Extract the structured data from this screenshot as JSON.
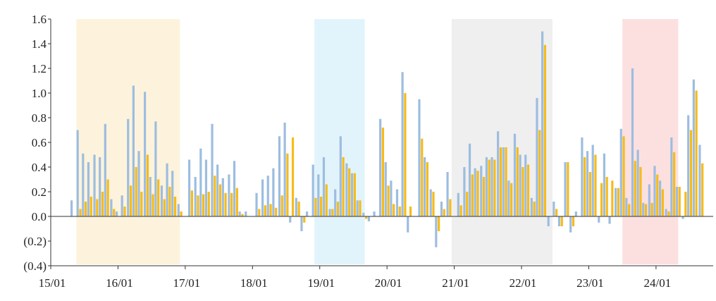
{
  "chart_data": {
    "type": "bar",
    "title": "",
    "xlabel": "",
    "ylabel": "",
    "ylim": [
      -0.4,
      1.6
    ],
    "y_ticks": [
      {
        "value": 1.6,
        "label": "1.6"
      },
      {
        "value": 1.4,
        "label": "1.4"
      },
      {
        "value": 1.2,
        "label": "1.2"
      },
      {
        "value": 1.0,
        "label": "1.0"
      },
      {
        "value": 0.8,
        "label": "0.8"
      },
      {
        "value": 0.6,
        "label": "0.6"
      },
      {
        "value": 0.4,
        "label": "0.4"
      },
      {
        "value": 0.2,
        "label": "0.2"
      },
      {
        "value": 0.0,
        "label": "0.0"
      },
      {
        "value": -0.2,
        "label": "(0.2)"
      },
      {
        "value": -0.4,
        "label": "(0.4)"
      }
    ],
    "x_range": [
      2015.0,
      2024.85
    ],
    "x_ticks": [
      {
        "value": 2015,
        "label": "15/01"
      },
      {
        "value": 2016,
        "label": "16/01"
      },
      {
        "value": 2017,
        "label": "17/01"
      },
      {
        "value": 2018,
        "label": "18/01"
      },
      {
        "value": 2019,
        "label": "19/01"
      },
      {
        "value": 2020,
        "label": "20/01"
      },
      {
        "value": 2021,
        "label": "21/01"
      },
      {
        "value": 2022,
        "label": "22/01"
      },
      {
        "value": 2023,
        "label": "23/01"
      },
      {
        "value": 2024,
        "label": "24/01"
      }
    ],
    "shaded_periods": [
      {
        "start": 2015.38,
        "end": 2016.92,
        "color": "#fdf3dc"
      },
      {
        "start": 2018.92,
        "end": 2019.67,
        "color": "#e2f4fb"
      },
      {
        "start": 2020.96,
        "end": 2022.46,
        "color": "#efefef"
      },
      {
        "start": 2023.5,
        "end": 2024.33,
        "color": "#fce0e0"
      }
    ],
    "series_colors": {
      "total": "#9dbde0",
      "component": "#f6bb1a",
      "small": "#555555"
    },
    "bars": [
      [
        2015.33,
        0.13,
        0
      ],
      [
        2015.42,
        0.7,
        0.06
      ],
      [
        2015.5,
        0.51,
        0.12
      ],
      [
        2015.58,
        0.44,
        0.16
      ],
      [
        2015.67,
        0.5,
        0.14
      ],
      [
        2015.75,
        0.48,
        0.2
      ],
      [
        2015.83,
        0.75,
        0.3
      ],
      [
        2015.92,
        0.14,
        0.06
      ],
      [
        2016.0,
        0.04,
        0
      ],
      [
        2016.08,
        0.17,
        0.08
      ],
      [
        2016.17,
        0.79,
        0.25
      ],
      [
        2016.25,
        1.06,
        0.4
      ],
      [
        2016.33,
        0.53,
        0.2
      ],
      [
        2016.42,
        1.01,
        0.5
      ],
      [
        2016.5,
        0.32,
        0.18
      ],
      [
        2016.58,
        0.77,
        0.3
      ],
      [
        2016.67,
        0.25,
        0.14
      ],
      [
        2016.75,
        0.43,
        0.24
      ],
      [
        2016.83,
        0.37,
        0.16
      ],
      [
        2016.92,
        0.1,
        0.04
      ],
      [
        2017.08,
        0.46,
        0.21
      ],
      [
        2017.17,
        0.32,
        0.17
      ],
      [
        2017.25,
        0.55,
        0.18
      ],
      [
        2017.33,
        0.46,
        0.2
      ],
      [
        2017.42,
        0.75,
        0.33
      ],
      [
        2017.5,
        0.42,
        0.26
      ],
      [
        2017.58,
        0.31,
        0.19
      ],
      [
        2017.67,
        0.34,
        0.19
      ],
      [
        2017.75,
        0.45,
        0.23
      ],
      [
        2017.83,
        0.04,
        0.02
      ],
      [
        2017.92,
        0.04,
        0
      ],
      [
        2018.08,
        0.19,
        0.06
      ],
      [
        2018.17,
        0.3,
        0.09
      ],
      [
        2018.25,
        0.33,
        0.1
      ],
      [
        2018.33,
        0.39,
        0.07
      ],
      [
        2018.42,
        0.65,
        0.17
      ],
      [
        2018.5,
        0.76,
        0.51
      ],
      [
        2018.58,
        -0.05,
        0.64
      ],
      [
        2018.67,
        0.15,
        0.12
      ],
      [
        2018.75,
        -0.12,
        -0.05
      ],
      [
        2018.83,
        0.04,
        0
      ],
      [
        2018.92,
        0.42,
        0.15
      ],
      [
        2019.0,
        0.34,
        0.16
      ],
      [
        2019.08,
        0.48,
        0.26
      ],
      [
        2019.17,
        0.06,
        0.06
      ],
      [
        2019.25,
        0.22,
        0.12
      ],
      [
        2019.33,
        0.65,
        0.48
      ],
      [
        2019.42,
        0.43,
        0.39
      ],
      [
        2019.5,
        0.35,
        0.35
      ],
      [
        2019.58,
        0.13,
        0.13
      ],
      [
        2019.67,
        0.03,
        -0.02
      ],
      [
        2019.75,
        -0.04,
        0
      ],
      [
        2019.83,
        0.04,
        0
      ],
      [
        2019.92,
        0.79,
        0.72
      ],
      [
        2020.0,
        0.44,
        0.25
      ],
      [
        2020.08,
        0.29,
        0.1
      ],
      [
        2020.17,
        0.22,
        0.08
      ],
      [
        2020.25,
        1.17,
        1.0
      ],
      [
        2020.33,
        -0.13,
        0.08
      ],
      [
        2020.5,
        0.95,
        0.63
      ],
      [
        2020.58,
        0.48,
        0.44
      ],
      [
        2020.67,
        0.22,
        0.2
      ],
      [
        2020.75,
        -0.25,
        -0.12
      ],
      [
        2020.83,
        0.12,
        0.06
      ],
      [
        2020.92,
        0.36,
        0.14
      ],
      [
        2021.08,
        0.19,
        0.09
      ],
      [
        2021.17,
        0.4,
        0.2
      ],
      [
        2021.25,
        0.59,
        0.34
      ],
      [
        2021.33,
        0.39,
        0.37
      ],
      [
        2021.42,
        0.41,
        0.32
      ],
      [
        2021.5,
        0.48,
        0.46
      ],
      [
        2021.58,
        0.48,
        0.46
      ],
      [
        2021.67,
        0.69,
        0.56
      ],
      [
        2021.75,
        0.56,
        0.56
      ],
      [
        2021.83,
        0.29,
        0.27
      ],
      [
        2021.92,
        0.67,
        0.56
      ],
      [
        2022.0,
        0.5,
        0.4
      ],
      [
        2022.08,
        0.5,
        0.42
      ],
      [
        2022.17,
        0.15,
        0.12
      ],
      [
        2022.25,
        0.96,
        0.7
      ],
      [
        2022.33,
        1.5,
        1.39
      ],
      [
        2022.42,
        -0.08,
        0
      ],
      [
        2022.5,
        0.12,
        0.06
      ],
      [
        2022.58,
        -0.08,
        -0.08
      ],
      [
        2022.67,
        0.44,
        0.44
      ],
      [
        2022.75,
        -0.13,
        -0.08
      ],
      [
        2022.83,
        0.04,
        0
      ],
      [
        2022.92,
        0.64,
        0.48
      ],
      [
        2023.0,
        0.53,
        0.36
      ],
      [
        2023.08,
        0.58,
        0.5
      ],
      [
        2023.17,
        -0.05,
        0.27
      ],
      [
        2023.25,
        0.51,
        0.32
      ],
      [
        2023.33,
        -0.06,
        0.29
      ],
      [
        2023.42,
        0.23,
        0.23
      ],
      [
        2023.5,
        0.71,
        0.65
      ],
      [
        2023.58,
        0.15,
        0.1
      ],
      [
        2023.67,
        1.2,
        0.45
      ],
      [
        2023.75,
        0.54,
        0.4
      ],
      [
        2023.83,
        0.11,
        0.1
      ],
      [
        2023.92,
        0.26,
        0.11
      ],
      [
        2024.0,
        0.41,
        0.34
      ],
      [
        2024.08,
        0.29,
        0.22
      ],
      [
        2024.17,
        0.06,
        0.04
      ],
      [
        2024.25,
        0.64,
        0.52
      ],
      [
        2024.33,
        0.24,
        0.24
      ],
      [
        2024.42,
        -0.02,
        0.2
      ],
      [
        2024.5,
        0.82,
        0.7
      ],
      [
        2024.58,
        1.11,
        1.02
      ],
      [
        2024.67,
        0.58,
        0.43
      ]
    ]
  }
}
